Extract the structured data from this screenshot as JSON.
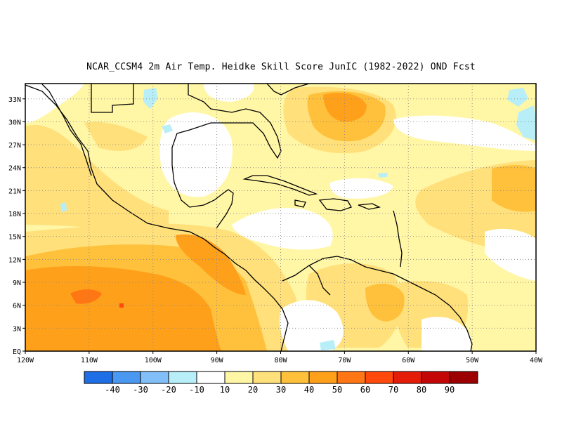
{
  "title": "NCAR_CCSM4  2m Air Temp. Heidke Skill Score JunIC (1982-2022) OND Fcst",
  "map": {
    "lon_range": [
      -120,
      -40
    ],
    "lat_range": [
      0,
      35
    ],
    "lon_ticks": [
      {
        "v": -120,
        "label": "120W"
      },
      {
        "v": -110,
        "label": "110W"
      },
      {
        "v": -100,
        "label": "100W"
      },
      {
        "v": -90,
        "label": "90W"
      },
      {
        "v": -80,
        "label": "80W"
      },
      {
        "v": -70,
        "label": "70W"
      },
      {
        "v": -60,
        "label": "60W"
      },
      {
        "v": -50,
        "label": "50W"
      },
      {
        "v": -40,
        "label": "40W"
      }
    ],
    "lat_ticks": [
      {
        "v": 0,
        "label": "EQ"
      },
      {
        "v": 3,
        "label": "3N"
      },
      {
        "v": 6,
        "label": "6N"
      },
      {
        "v": 9,
        "label": "9N"
      },
      {
        "v": 12,
        "label": "12N"
      },
      {
        "v": 15,
        "label": "15N"
      },
      {
        "v": 18,
        "label": "18N"
      },
      {
        "v": 21,
        "label": "21N"
      },
      {
        "v": 24,
        "label": "24N"
      },
      {
        "v": 27,
        "label": "27N"
      },
      {
        "v": 30,
        "label": "30N"
      },
      {
        "v": 33,
        "label": "33N"
      }
    ],
    "grid": "dotted"
  },
  "legend": {
    "bins": [
      {
        "color": "#1e6ee6"
      },
      {
        "color": "#4a98f2"
      },
      {
        "color": "#82bff8"
      },
      {
        "color": "#b7eef8"
      },
      {
        "color": "#ffffff"
      },
      {
        "color": "#fff6a6"
      },
      {
        "color": "#ffe07a"
      },
      {
        "color": "#ffc13b"
      },
      {
        "color": "#ffa01a"
      },
      {
        "color": "#ff7614"
      },
      {
        "color": "#ff4a0c"
      },
      {
        "color": "#e41c08"
      },
      {
        "color": "#c40606"
      },
      {
        "color": "#9c0000"
      }
    ],
    "labels": [
      "-40",
      "-30",
      "-20",
      "-10",
      "10",
      "20",
      "30",
      "40",
      "50",
      "60",
      "70",
      "80",
      "90"
    ]
  }
}
